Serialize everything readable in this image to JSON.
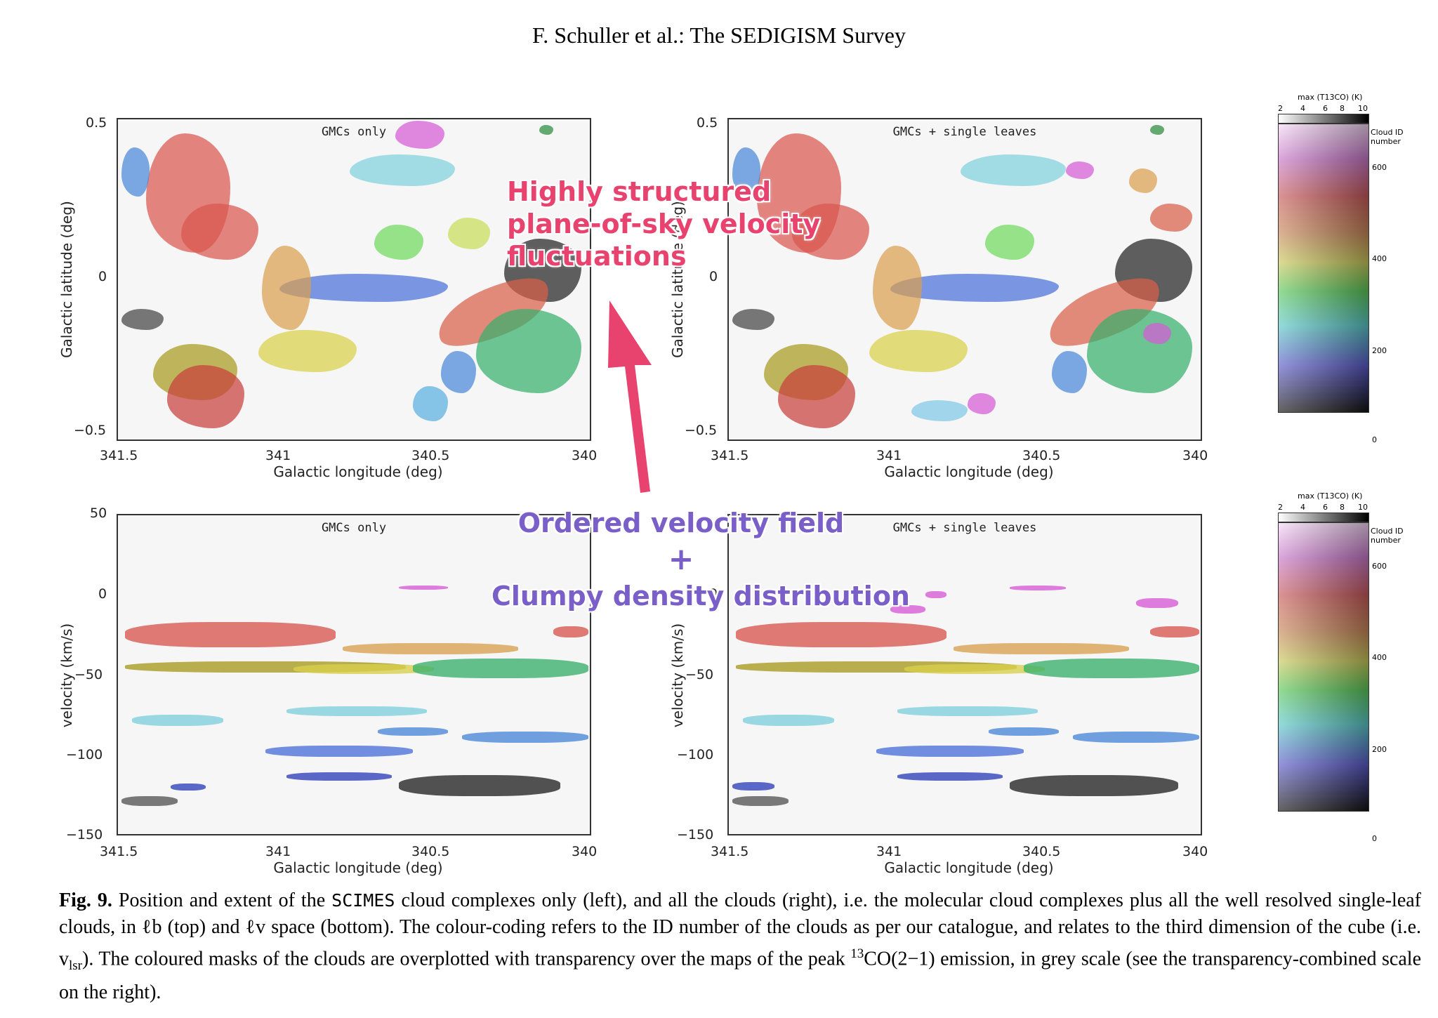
{
  "header": "F. Schuller et al.: The SEDIGISM Survey",
  "panels": {
    "top_left_title": "GMCs only",
    "top_right_title": "GMCs + single leaves",
    "bottom_left_title": "GMCs only",
    "bottom_right_title": "GMCs + single leaves"
  },
  "axes": {
    "x_label": "Galactic longitude (deg)",
    "y_label_top": "Galactic latitude (deg)",
    "y_label_bottom": "velocity (km/s)",
    "x_ticks": [
      "341.5",
      "341",
      "340.5",
      "340"
    ],
    "y_ticks_top": [
      "0.5",
      "0",
      "−0.5"
    ],
    "y_ticks_bottom": [
      "50",
      "0",
      "−50",
      "−100",
      "−150"
    ]
  },
  "colorbar": {
    "title": "max (T13CO) (K)",
    "gray_ticks": [
      "2",
      "4",
      "6",
      "8",
      "10"
    ],
    "id_label": "Cloud ID number",
    "id_ticks": [
      "600",
      "400",
      "200",
      "0"
    ]
  },
  "annotations": {
    "top_line1": "Highly structured",
    "top_line2": "plane-of-sky velocity",
    "top_line3": "fluctuations",
    "bottom_line1": "Ordered velocity field",
    "bottom_plus": "+",
    "bottom_line2": "Clumpy density distribution",
    "top_color": "#e8436e",
    "bottom_color": "#7a5fc9"
  },
  "caption": {
    "fig": "Fig. 9.",
    "part1": " Position and extent of the ",
    "scimes": "SCIMES",
    "part2": " cloud complexes only (left), and all the clouds (right), i.e. the molecular cloud complexes plus all the well resolved single-leaf clouds, in ℓb (top) and ℓv space (bottom). The colour-coding refers to the ID number of the clouds as per our catalogue, and relates to the third dimension of the cube (i.e. v",
    "sub": "lsr",
    "part3": "). The coloured masks of the clouds are overplotted with transparency over the maps of the peak ",
    "sup": "13",
    "part4": "CO(2−1) emission, in grey scale (see the transparency-combined scale on the right)."
  }
}
